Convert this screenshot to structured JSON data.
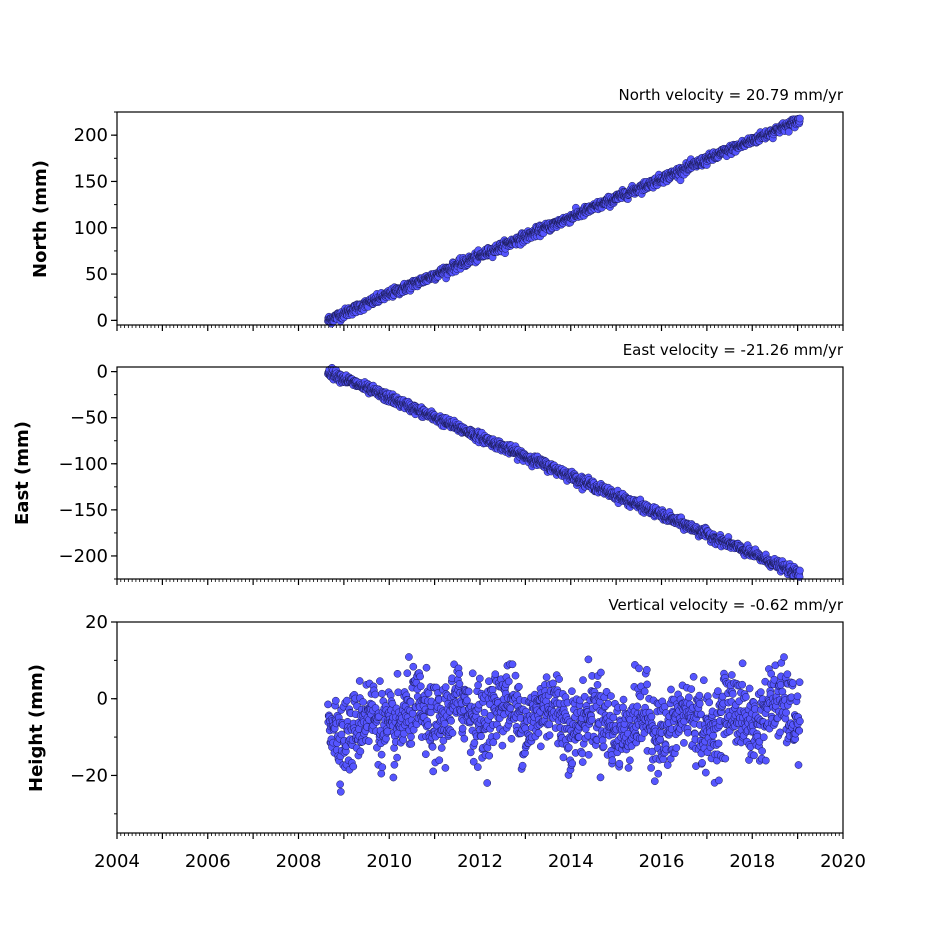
{
  "chart_data": [
    {
      "type": "scatter",
      "title": "North velocity = 20.79 mm/yr",
      "ylabel": "North (mm)",
      "xlim": [
        2004,
        2020
      ],
      "ylim": [
        -5,
        225
      ],
      "yticks": [
        0,
        50,
        100,
        150,
        200
      ],
      "ytick_labels": [
        "0",
        "50",
        "100",
        "150",
        "200"
      ],
      "x_start": 2008.65,
      "x_end": 2019.05,
      "y_start": 0,
      "y_end": 216,
      "noise_mm": 2.5,
      "series": [
        {
          "color": "#5555ff"
        }
      ]
    },
    {
      "type": "scatter",
      "title": "East velocity = -21.26 mm/yr",
      "ylabel": "East (mm)",
      "xlim": [
        2004,
        2020
      ],
      "ylim": [
        -225,
        5
      ],
      "yticks": [
        0,
        -50,
        -100,
        -150,
        -200
      ],
      "ytick_labels": [
        "0",
        "−50",
        "−100",
        "−150",
        "−200"
      ],
      "x_start": 2008.65,
      "x_end": 2019.05,
      "y_start": 0,
      "y_end": -220,
      "noise_mm": 2.5,
      "series": [
        {
          "color": "#5555ff"
        }
      ]
    },
    {
      "type": "scatter",
      "title": "Vertical velocity = -0.62 mm/yr",
      "ylabel": "Height (mm)",
      "xlim": [
        2004,
        2020
      ],
      "ylim": [
        -35,
        20
      ],
      "yticks": [
        20,
        0,
        -20
      ],
      "ytick_labels": [
        "20",
        "0",
        "−20"
      ],
      "x_start": 2008.65,
      "x_end": 2019.05,
      "y_mean": -5,
      "noise_mm": 5,
      "series": [
        {
          "color": "#5555ff"
        }
      ],
      "xticks": [
        2004,
        2006,
        2008,
        2010,
        2012,
        2014,
        2016,
        2018,
        2020
      ],
      "xtick_labels": [
        "2004",
        "2006",
        "2008",
        "2010",
        "2012",
        "2014",
        "2016",
        "2018",
        "2020"
      ]
    }
  ]
}
